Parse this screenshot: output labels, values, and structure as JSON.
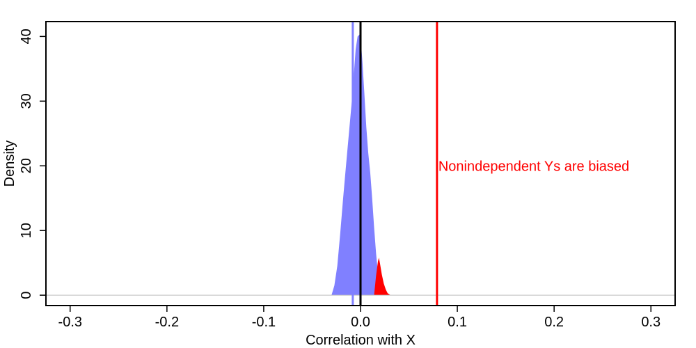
{
  "chart_data": {
    "type": "area",
    "xlabel": "Correlation with X",
    "ylabel": "Density",
    "xlim": [
      -0.325,
      0.325
    ],
    "ylim": [
      -1.6,
      42.3
    ],
    "x_ticks": [
      -0.3,
      -0.2,
      -0.1,
      0.0,
      0.1,
      0.2,
      0.3
    ],
    "x_tick_labels": [
      "-0.3",
      "-0.2",
      "-0.1",
      "0.0",
      "0.1",
      "0.2",
      "0.3"
    ],
    "y_ticks": [
      0,
      10,
      20,
      30,
      40
    ],
    "y_tick_labels": [
      "0",
      "10",
      "20",
      "30",
      "40"
    ],
    "grid": false,
    "series": [
      {
        "color": "#8080ff",
        "x": [
          -0.03,
          -0.027,
          -0.024,
          -0.021,
          -0.018,
          -0.015,
          -0.012,
          -0.009,
          -0.007,
          -0.005,
          -0.003,
          -0.001,
          0.0,
          0.002,
          0.004,
          0.006,
          0.008,
          0.01,
          0.012,
          0.014,
          0.016,
          0.018,
          0.02,
          0.024,
          0.028
        ],
        "y": [
          0.0,
          1.5,
          4.5,
          9.5,
          15.0,
          20.0,
          25.0,
          30.0,
          34.0,
          38.0,
          40.0,
          40.3,
          40.0,
          36.0,
          31.0,
          26.0,
          22.0,
          19.0,
          15.0,
          10.5,
          6.5,
          3.5,
          1.5,
          0.4,
          0.0
        ]
      },
      {
        "color": "#ff0000",
        "x": [
          0.014,
          0.016,
          0.018,
          0.019,
          0.02,
          0.022,
          0.024,
          0.026,
          0.028,
          0.031
        ],
        "y": [
          0.0,
          3.0,
          5.2,
          5.8,
          5.0,
          3.2,
          1.8,
          0.9,
          0.3,
          0.0
        ]
      }
    ],
    "vlines": [
      {
        "x": -0.008,
        "color": "#8080ff"
      },
      {
        "x": 0.0,
        "color": "#000000"
      },
      {
        "x": 0.079,
        "color": "#ff0000"
      }
    ],
    "hline": {
      "y": 0,
      "color": "#bebebe"
    },
    "annotation": {
      "text": "Nonindependent Ys are biased",
      "x": 0.079,
      "y": 20,
      "color": "#ff0000"
    }
  }
}
